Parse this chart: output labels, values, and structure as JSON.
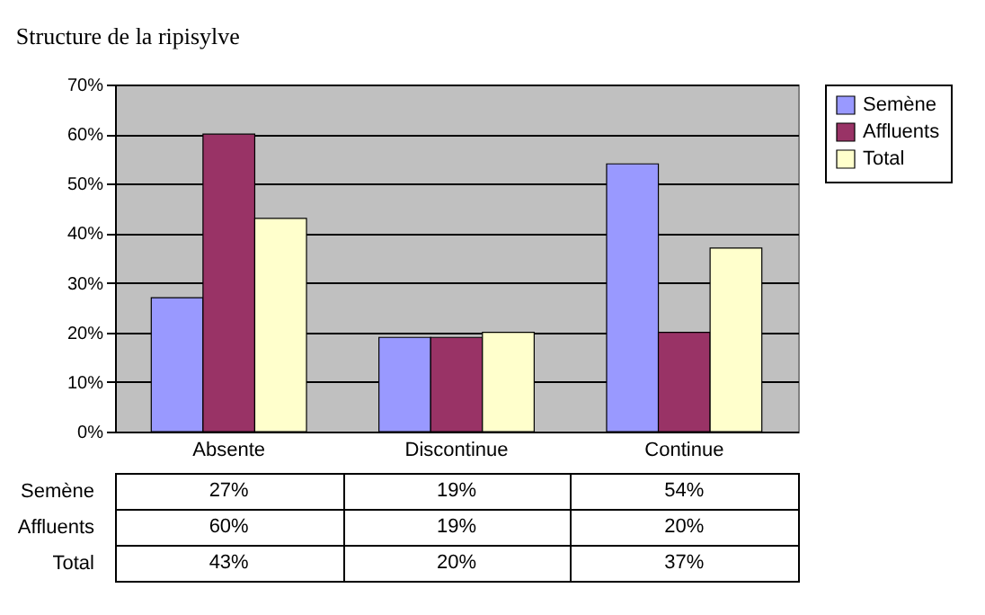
{
  "chart_data": {
    "type": "bar",
    "title": "Structure de la ripisylve",
    "categories": [
      "Absente",
      "Discontinue",
      "Continue"
    ],
    "series": [
      {
        "name": "Semène",
        "color": "#9999ff",
        "values": [
          27,
          19,
          54
        ],
        "value_labels": [
          "27%",
          "19%",
          "54%"
        ]
      },
      {
        "name": "Affluents",
        "color": "#993366",
        "values": [
          60,
          19,
          20
        ],
        "value_labels": [
          "60%",
          "19%",
          "20%"
        ]
      },
      {
        "name": "Total",
        "color": "#ffffcc",
        "values": [
          43,
          20,
          37
        ],
        "value_labels": [
          "43%",
          "20%",
          "37%"
        ]
      }
    ],
    "ylim": [
      0,
      70
    ],
    "yticks": [
      {
        "value": 0,
        "label": "0%"
      },
      {
        "value": 10,
        "label": "10%"
      },
      {
        "value": 20,
        "label": "20%"
      },
      {
        "value": 30,
        "label": "30%"
      },
      {
        "value": 40,
        "label": "40%"
      },
      {
        "value": 50,
        "label": "50%"
      },
      {
        "value": 60,
        "label": "60%"
      },
      {
        "value": 70,
        "label": "70%"
      }
    ],
    "grid": "y",
    "legend": "right"
  }
}
